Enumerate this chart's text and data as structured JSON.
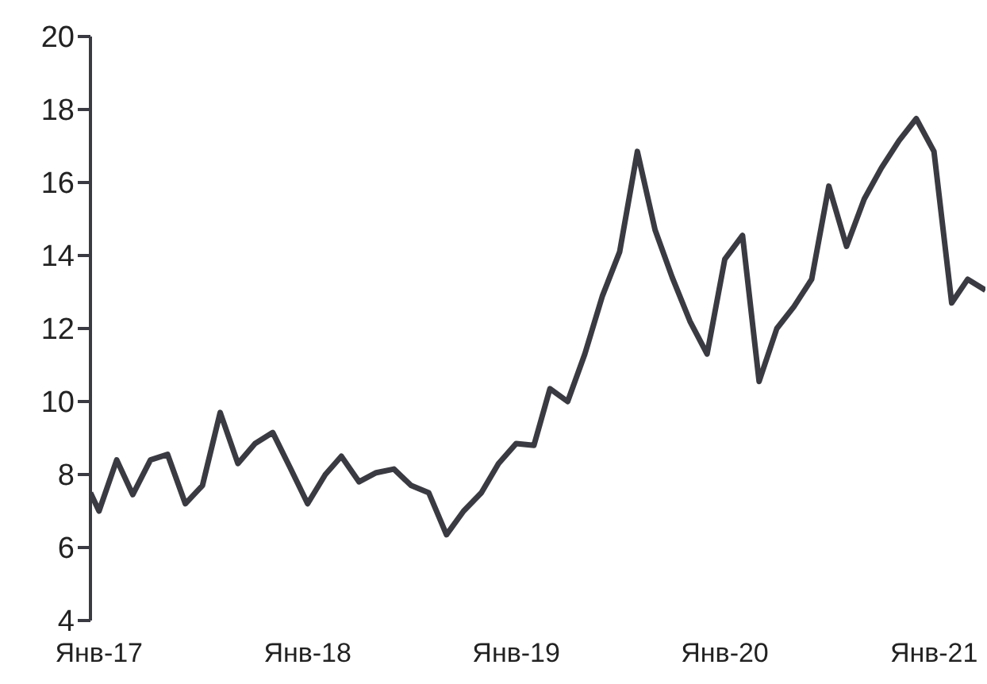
{
  "chart_data": {
    "type": "line",
    "x": [
      "2016-12-17",
      "2017-01",
      "2017-02",
      "2017-03",
      "2017-04",
      "2017-05",
      "2017-06",
      "2017-07",
      "2017-08",
      "2017-09",
      "2017-10",
      "2017-11",
      "2017-12",
      "2018-01",
      "2018-02",
      "2018-03",
      "2018-04",
      "2018-05",
      "2018-06",
      "2018-07",
      "2018-08",
      "2018-09",
      "2018-10",
      "2018-11",
      "2018-12",
      "2019-01",
      "2019-02",
      "2019-03",
      "2019-04",
      "2019-05",
      "2019-06",
      "2019-07",
      "2019-08",
      "2019-09",
      "2019-10",
      "2019-11",
      "2019-12",
      "2020-01",
      "2020-02",
      "2020-03",
      "2020-04",
      "2020-05",
      "2020-06",
      "2020-07",
      "2020-08",
      "2020-09",
      "2020-10",
      "2020-11",
      "2020-12",
      "2021-01",
      "2021-02",
      "2021-03",
      "2021-04"
    ],
    "series": [
      {
        "color": "#3a3a42",
        "values": [
          7.5,
          7.0,
          8.4,
          7.45,
          8.4,
          8.55,
          7.2,
          7.7,
          9.7,
          8.3,
          8.85,
          9.15,
          8.2,
          7.2,
          8.0,
          8.5,
          7.8,
          8.05,
          8.15,
          7.7,
          7.5,
          6.35,
          7.0,
          7.5,
          8.3,
          8.85,
          8.8,
          10.35,
          10.0,
          11.3,
          12.9,
          14.1,
          16.85,
          14.7,
          13.4,
          12.2,
          11.3,
          13.9,
          14.55,
          10.55,
          12.0,
          12.6,
          13.35,
          15.9,
          14.25,
          15.55,
          16.4,
          17.15,
          17.75,
          16.85,
          12.7,
          13.35,
          13.05
        ]
      }
    ],
    "xlim": [
      "2016-12-17",
      "2021-04"
    ],
    "xticks": [
      {
        "value": "2017-01",
        "label": "Янв-17"
      },
      {
        "value": "2018-01",
        "label": "Янв-18"
      },
      {
        "value": "2019-01",
        "label": "Янв-19"
      },
      {
        "value": "2020-01",
        "label": "Янв-20"
      },
      {
        "value": "2021-01",
        "label": "Янв-21"
      }
    ],
    "ylim": [
      4,
      20
    ],
    "yticks": [
      4,
      6,
      8,
      10,
      12,
      14,
      16,
      18,
      20
    ],
    "grid": false,
    "legend": false,
    "marker": "none",
    "line_style": "solid"
  }
}
